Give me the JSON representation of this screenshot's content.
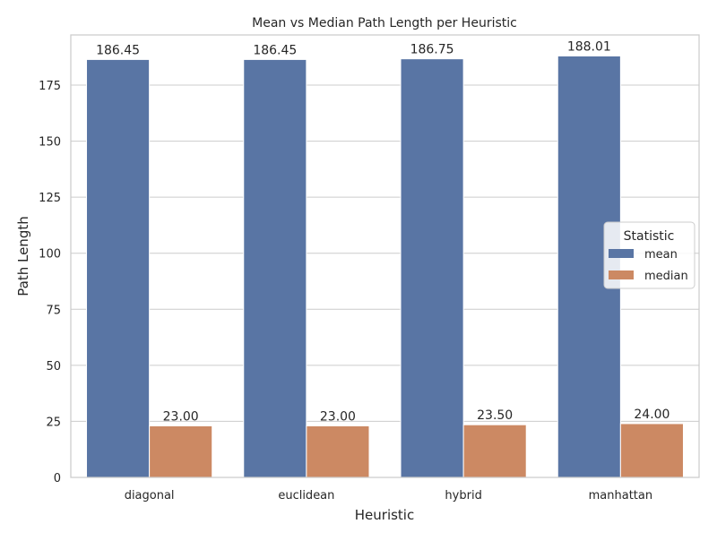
{
  "chart_data": {
    "type": "bar",
    "title": "Mean vs Median Path Length per Heuristic",
    "xlabel": "Heuristic",
    "ylabel": "Path Length",
    "categories": [
      "diagonal",
      "euclidean",
      "hybrid",
      "manhattan"
    ],
    "series": [
      {
        "name": "mean",
        "values": [
          186.45,
          186.45,
          186.75,
          188.01
        ],
        "color": "#5975a4"
      },
      {
        "name": "median",
        "values": [
          23.0,
          23.0,
          23.5,
          24.0
        ],
        "color": "#cc8963"
      }
    ],
    "data_labels": [
      [
        "186.45",
        "186.45",
        "186.75",
        "188.01"
      ],
      [
        "23.00",
        "23.00",
        "23.50",
        "24.00"
      ]
    ],
    "ylim": [
      0,
      197.4
    ],
    "yticks": [
      0,
      25,
      50,
      75,
      100,
      125,
      150,
      175
    ],
    "grid": "horizontal",
    "legend": {
      "title": "Statistic",
      "placement": "center-right"
    }
  }
}
